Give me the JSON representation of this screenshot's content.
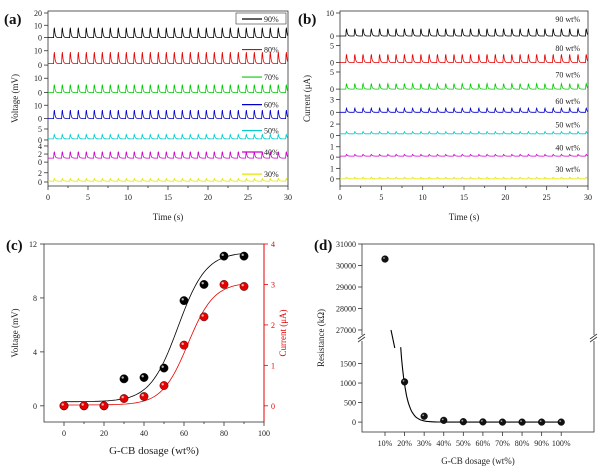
{
  "chart_data": [
    {
      "panel": "(a)",
      "type": "line",
      "title": "",
      "xlabel": "Time (s)",
      "ylabel": "Voltage (mV)",
      "xlim": [
        0,
        30
      ],
      "xticks": [
        "0",
        "5",
        "10",
        "15",
        "20",
        "25",
        "30"
      ],
      "description": "Stacked periodic voltage pulse traces for each G-CB dosage",
      "series": [
        {
          "name": "90%",
          "color": "#000000",
          "ticks": [
            "0",
            "10",
            "20"
          ],
          "ylim": [
            0,
            20
          ],
          "baseline": 0,
          "peak": 10,
          "period_s": 1.0
        },
        {
          "name": "80%",
          "color": "#e60000",
          "ticks": [
            "0",
            "10"
          ],
          "ylim": [
            0,
            15
          ],
          "baseline": 1,
          "peak": 11,
          "period_s": 1.0
        },
        {
          "name": "70%",
          "color": "#00cc00",
          "ticks": [
            "0",
            "10"
          ],
          "ylim": [
            0,
            15
          ],
          "baseline": 0,
          "peak": 7,
          "period_s": 1.0
        },
        {
          "name": "60%",
          "color": "#0000cc",
          "ticks": [
            "0",
            "10"
          ],
          "ylim": [
            0,
            15
          ],
          "baseline": 0,
          "peak": 8,
          "period_s": 1.0
        },
        {
          "name": "50%",
          "color": "#00cccc",
          "ticks": [
            "0",
            "5"
          ],
          "ylim": [
            0,
            7
          ],
          "baseline": 0.5,
          "peak": 3,
          "period_s": 1.0
        },
        {
          "name": "40%",
          "color": "#cc00cc",
          "ticks": [
            "0",
            "2",
            "4"
          ],
          "ylim": [
            0,
            4
          ],
          "baseline": 1,
          "peak": 3,
          "period_s": 1.0
        },
        {
          "name": "30%",
          "color": "#e6e600",
          "ticks": [
            "0",
            "2"
          ],
          "ylim": [
            0,
            3
          ],
          "baseline": 0.2,
          "peak": 0.9,
          "period_s": 1.0
        }
      ]
    },
    {
      "panel": "(b)",
      "type": "line",
      "title": "",
      "xlabel": "Time (s)",
      "ylabel": "Current (μA)",
      "xlim": [
        0,
        30
      ],
      "xticks": [
        "0",
        "5",
        "10",
        "15",
        "20",
        "25",
        "30"
      ],
      "description": "Stacked periodic current pulse traces for each G-CB dosage",
      "series": [
        {
          "name": "90 wt%",
          "color": "#000000",
          "ticks": [
            "0",
            "10"
          ],
          "ylim": [
            0,
            10
          ],
          "baseline": 0,
          "peak": 4,
          "period_s": 1.0
        },
        {
          "name": "80 wt%",
          "color": "#e60000",
          "ticks": [
            "0",
            "5"
          ],
          "ylim": [
            0,
            6
          ],
          "baseline": 0,
          "peak": 3,
          "period_s": 1.0
        },
        {
          "name": "70 wt%",
          "color": "#00cc00",
          "ticks": [
            "0",
            "5"
          ],
          "ylim": [
            0,
            6
          ],
          "baseline": 0,
          "peak": 2,
          "period_s": 1.0
        },
        {
          "name": "60 wt%",
          "color": "#0000cc",
          "ticks": [
            "0",
            "3"
          ],
          "ylim": [
            0,
            4
          ],
          "baseline": 0,
          "peak": 1.2,
          "period_s": 1.0
        },
        {
          "name": "50 wt%",
          "color": "#00cccc",
          "ticks": [
            "0",
            "2"
          ],
          "ylim": [
            0,
            3
          ],
          "baseline": 0.3,
          "peak": 0.8,
          "period_s": 1.0
        },
        {
          "name": "40 wt%",
          "color": "#cc00cc",
          "ticks": [
            "0",
            "1"
          ],
          "ylim": [
            0,
            1.5
          ],
          "baseline": 0.1,
          "peak": 0.3,
          "period_s": 1.0
        },
        {
          "name": "30 wt%",
          "color": "#e6e600",
          "ticks": [
            "0",
            "1"
          ],
          "ylim": [
            -0.3,
            1.5
          ],
          "baseline": 0,
          "peak": 0.2,
          "period_s": 1.0
        }
      ]
    },
    {
      "panel": "(c)",
      "type": "scatter",
      "title": "",
      "xlabel": "G-CB dosage (wt%)",
      "ylabel": "Voltage (mV)",
      "y2label": "Current (μA)",
      "xlim": [
        -10,
        100
      ],
      "ylim": [
        -1.2,
        12
      ],
      "y2lim": [
        -0.4,
        4
      ],
      "xticks": [
        "0",
        "20",
        "40",
        "60",
        "80",
        "100"
      ],
      "yticks": [
        "0",
        "4",
        "8",
        "12"
      ],
      "y2ticks": [
        "0",
        "1",
        "2",
        "3",
        "4"
      ],
      "x": [
        0,
        10,
        20,
        30,
        40,
        50,
        60,
        70,
        80,
        90
      ],
      "series": [
        {
          "name": "Voltage",
          "axis": "left",
          "color": "#000000",
          "values": [
            0,
            0,
            0,
            2.0,
            2.1,
            2.8,
            7.8,
            9.0,
            11.1,
            11.1
          ],
          "fit": "sigmoid"
        },
        {
          "name": "Current",
          "axis": "right",
          "color": "#e60000",
          "values": [
            0,
            0,
            0,
            0.18,
            0.23,
            0.5,
            1.5,
            2.2,
            3.0,
            2.95
          ],
          "fit": "sigmoid"
        }
      ]
    },
    {
      "panel": "(d)",
      "type": "scatter",
      "title": "",
      "xlabel": "G-CB dosage (wt%)",
      "ylabel": "Resistance (kΩ)",
      "categories": [
        "10%",
        "20%",
        "30%",
        "40%",
        "50%",
        "60%",
        "70%",
        "80%",
        "90%",
        "100%"
      ],
      "yticks_lower": [
        "0",
        "500",
        "1000",
        "1500"
      ],
      "yticks_upper": [
        "27000",
        "28000",
        "29000",
        "30000",
        "31000"
      ],
      "ylim_lower": [
        -100,
        2000
      ],
      "ylim_upper": [
        27000,
        31000
      ],
      "axis_break": true,
      "values": [
        30300,
        1030,
        150,
        45,
        10,
        5,
        0,
        0,
        0,
        0
      ],
      "series": [
        {
          "name": "Resistance",
          "color": "#000000",
          "fit": "exponential decay"
        }
      ]
    }
  ]
}
